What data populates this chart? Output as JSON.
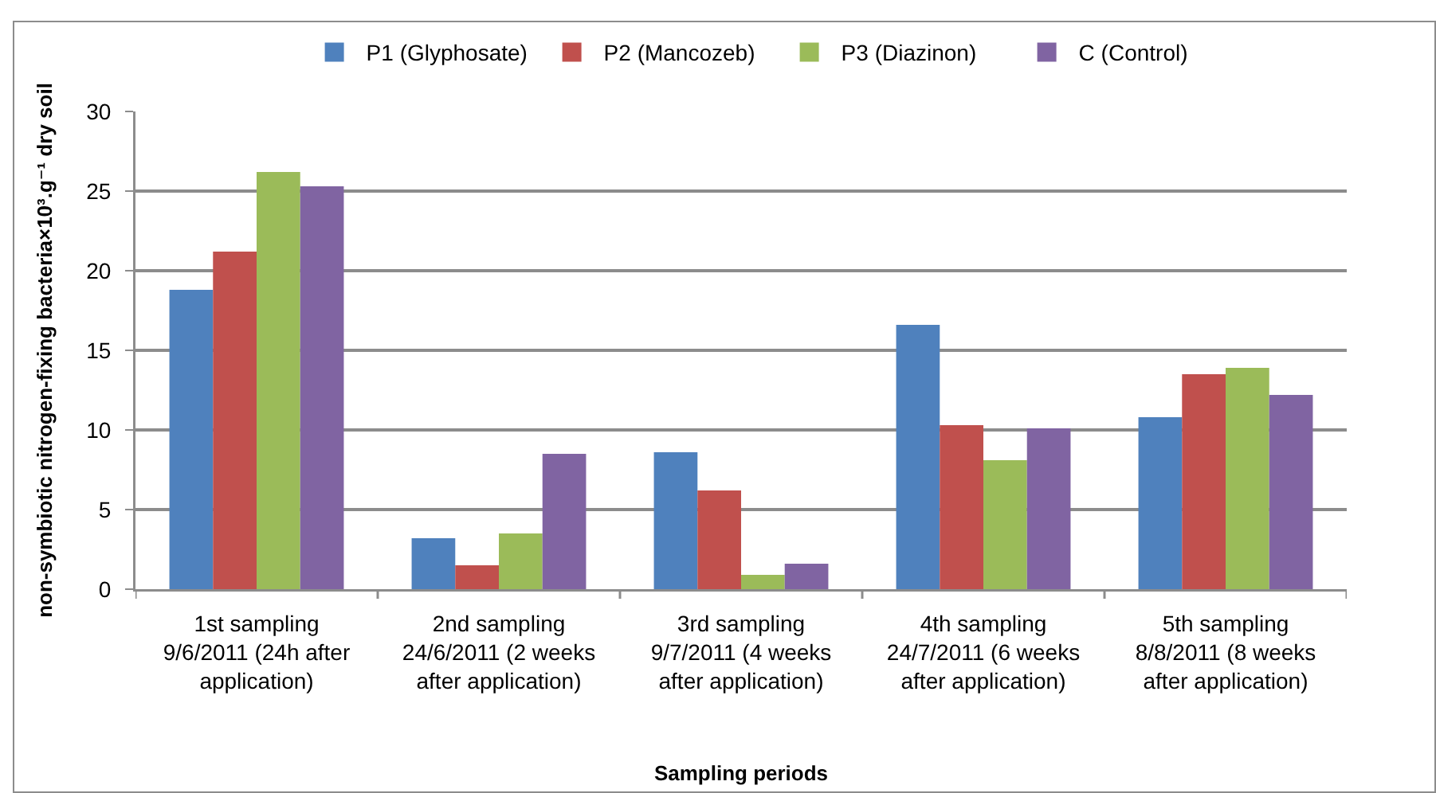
{
  "chart_data": {
    "type": "bar",
    "xlabel": "Sampling periods",
    "ylabel": "non-symbiotic nitrogen-fixing bacteria×10³.g⁻¹ dry soil",
    "categories": [
      "1st sampling 9/6/2011 (24h after application)",
      "2nd sampling 24/6/2011 (2 weeks after application)",
      "3rd sampling 9/7/2011 (4 weeks after application)",
      "4th sampling 24/7/2011 (6 weeks after application)",
      "5th sampling 8/8/2011 (8 weeks after application)"
    ],
    "series": [
      {
        "name": "P1 (Glyphosate)",
        "color": "#4f81bd",
        "values": [
          18.8,
          3.2,
          8.6,
          16.6,
          10.8
        ]
      },
      {
        "name": "P2 (Mancozeb)",
        "color": "#c0504d",
        "values": [
          21.2,
          1.5,
          6.2,
          10.3,
          13.5
        ]
      },
      {
        "name": "P3 (Diazinon)",
        "color": "#9bbb59",
        "values": [
          26.2,
          3.5,
          0.9,
          8.1,
          13.9
        ]
      },
      {
        "name": "C (Control)",
        "color": "#8064a2",
        "values": [
          25.3,
          8.5,
          1.6,
          10.1,
          12.2
        ]
      }
    ],
    "ylim": [
      0,
      30
    ],
    "yticks": [
      0,
      5,
      10,
      15,
      20,
      25,
      30
    ],
    "grid": "y",
    "legend": "top"
  }
}
